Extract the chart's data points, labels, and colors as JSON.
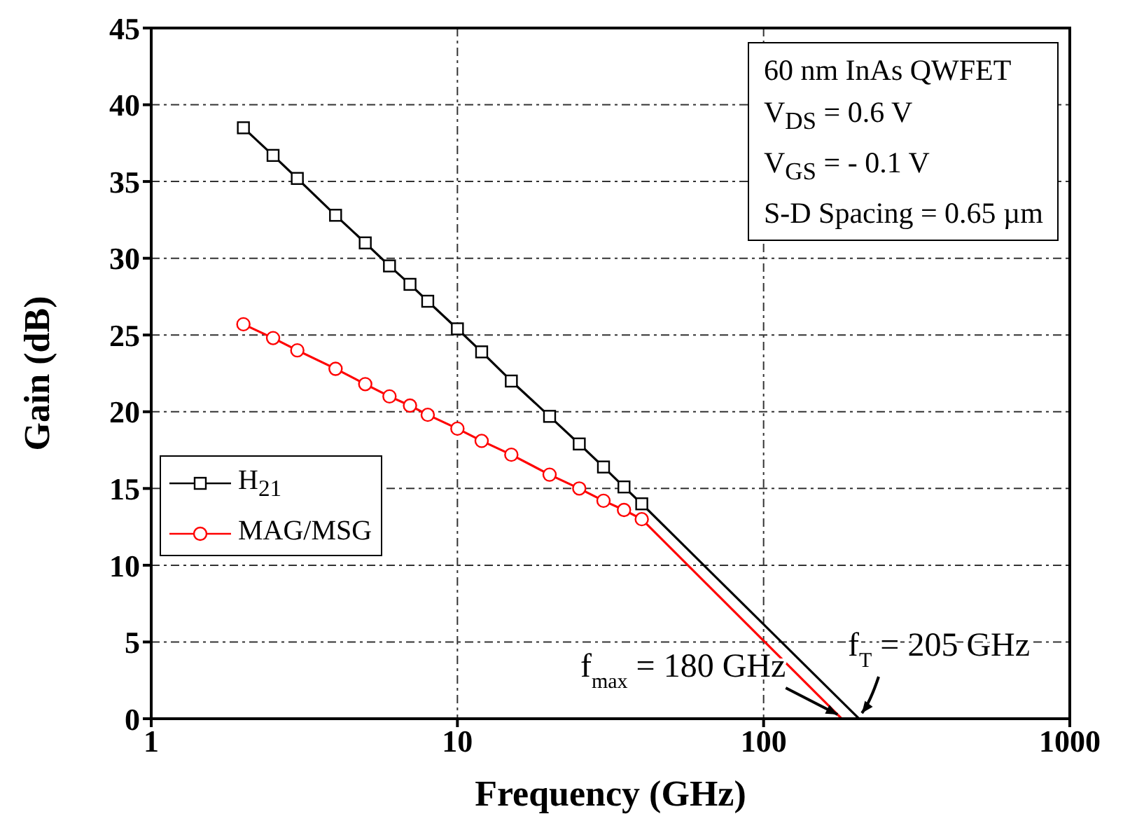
{
  "chart_data": {
    "type": "line",
    "xlabel": "Frequency (GHz)",
    "ylabel": "Gain (dB)",
    "log": "x",
    "xlim": [
      1,
      1000
    ],
    "xticks": [
      1,
      10,
      100,
      1000
    ],
    "ylim": [
      0,
      45
    ],
    "yticks": [
      0,
      5,
      10,
      15,
      20,
      25,
      30,
      35,
      40,
      45
    ],
    "grid": true,
    "legend": "left",
    "line_style": "solid",
    "series": [
      {
        "name": "H$_{21}$",
        "color": "#000000",
        "marker": "square",
        "x": [
          2,
          2.5,
          3,
          4,
          5,
          6,
          7,
          8,
          10,
          12,
          15,
          20,
          25,
          30,
          35,
          40
        ],
        "values": [
          38.5,
          36.7,
          35.2,
          32.8,
          31.0,
          29.5,
          28.3,
          27.2,
          25.4,
          23.9,
          22.0,
          19.7,
          17.9,
          16.4,
          15.1,
          14.0
        ]
      },
      {
        "name": "MAG/MSG",
        "color": "#ff0000",
        "marker": "circle",
        "x": [
          2,
          2.5,
          3,
          4,
          5,
          6,
          7,
          8,
          10,
          12,
          15,
          20,
          25,
          30,
          35,
          40
        ],
        "values": [
          25.7,
          24.8,
          24.0,
          22.8,
          21.8,
          21.0,
          20.4,
          19.8,
          18.9,
          18.1,
          17.2,
          15.9,
          15.0,
          14.2,
          13.6,
          13.0
        ]
      },
      {
        "color": "#000000",
        "marker": "none",
        "x": [
          40,
          205
        ],
        "values": [
          14.0,
          0
        ]
      },
      {
        "color": "#ff0000",
        "marker": "none",
        "x": [
          40,
          180
        ],
        "values": [
          13.0,
          0
        ]
      }
    ],
    "annotations": [
      "60 nm InAs QWFET",
      "V$_{DS}$ = 0.6 V",
      "V$_{GS}$ = - 0.1 V",
      "S-D Spacing = 0.65 µm",
      {
        "text": "f$_{max}$ = 180 GHz",
        "x": 180,
        "y": 0
      },
      {
        "text": "f$_{T}$ = 205 GHz",
        "x": 205,
        "y": 0
      }
    ]
  }
}
